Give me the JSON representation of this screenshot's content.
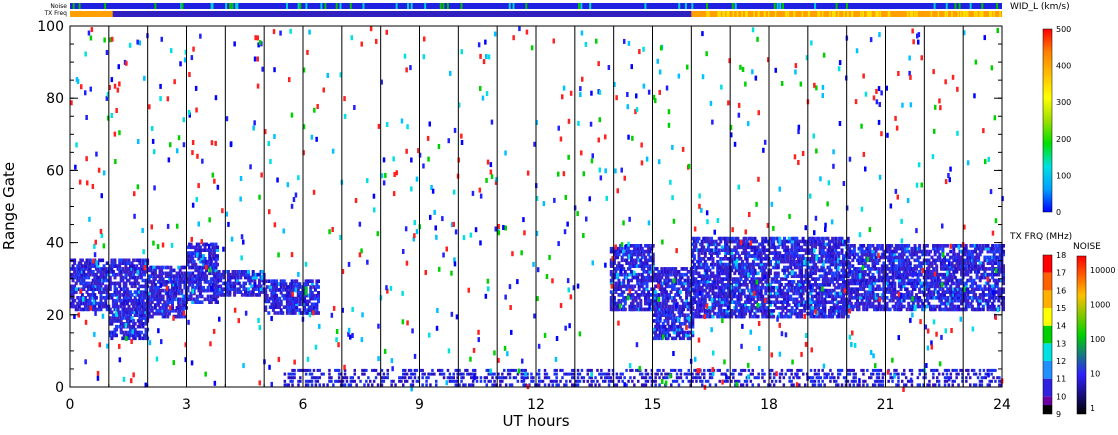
{
  "chart_data": {
    "type": "heatmap",
    "title": "",
    "xlabel": "UT hours",
    "ylabel": "Range Gate",
    "xlim": [
      0,
      24
    ],
    "ylim": [
      0,
      100
    ],
    "x_tick_labels": [
      "0",
      "3",
      "6",
      "9",
      "12",
      "15",
      "18",
      "21",
      "24"
    ],
    "y_tick_labels": [
      "0",
      "20",
      "40",
      "60",
      "80",
      "100"
    ],
    "grid": "vertical lines at scan boundaries",
    "scan_boundaries_ut": [
      1.0,
      2.0,
      3.0,
      4.0,
      5.0,
      6.0,
      7.0,
      8.0,
      9.0,
      10.0,
      11.0,
      12.0,
      13.0,
      14.0,
      15.0,
      16.0,
      17.0,
      18.0,
      19.0,
      20.0,
      21.0,
      22.0,
      23.0,
      24.0
    ],
    "top_strips": {
      "noise_label": "Noise",
      "txfreq_label": "TX Freq"
    },
    "colorbar_width": {
      "title": "WID_L (km/s)",
      "range": [
        0,
        500
      ],
      "tick_labels": [
        "0",
        "100",
        "200",
        "300",
        "400",
        "500"
      ],
      "colors": [
        "#0000ff",
        "#00a0ff",
        "#00e0e0",
        "#00e000",
        "#a0e000",
        "#ffff00",
        "#ffc000",
        "#ff8000",
        "#ff0000"
      ]
    },
    "colorbar_txfreq": {
      "title": "TX FRQ (MHz)",
      "tick_labels": [
        "9",
        "10",
        "11",
        "12",
        "13",
        "14",
        "15",
        "16",
        "17",
        "18"
      ],
      "colors": [
        "#000000",
        "#6a00a0",
        "#3020e0",
        "#2090ff",
        "#00e0e0",
        "#00d000",
        "#ffff00",
        "#ffb000",
        "#ff6000",
        "#ff0000"
      ]
    },
    "colorbar_noise": {
      "title": "NOISE",
      "tick_labels": [
        "1",
        "10",
        "100",
        "1000",
        "10000"
      ],
      "colors": [
        "#000000",
        "#3020ff",
        "#00d000",
        "#ffc000",
        "#ff0000"
      ]
    },
    "echo_bands": [
      {
        "t_start": 0.0,
        "t_end": 1.0,
        "gate_low": 22,
        "gate_high": 36
      },
      {
        "t_start": 1.0,
        "t_end": 2.0,
        "gate_low": 14,
        "gate_high": 36
      },
      {
        "t_start": 2.0,
        "t_end": 3.0,
        "gate_low": 20,
        "gate_high": 34
      },
      {
        "t_start": 3.0,
        "t_end": 3.8,
        "gate_low": 24,
        "gate_high": 40
      },
      {
        "t_start": 3.8,
        "t_end": 5.0,
        "gate_low": 26,
        "gate_high": 33
      },
      {
        "t_start": 5.0,
        "t_end": 6.4,
        "gate_low": 21,
        "gate_high": 30
      },
      {
        "t_start": 13.9,
        "t_end": 15.0,
        "gate_low": 22,
        "gate_high": 40
      },
      {
        "t_start": 15.0,
        "t_end": 16.0,
        "gate_low": 14,
        "gate_high": 34
      },
      {
        "t_start": 16.0,
        "t_end": 20.0,
        "gate_low": 20,
        "gate_high": 42
      },
      {
        "t_start": 20.0,
        "t_end": 24.0,
        "gate_low": 22,
        "gate_high": 40
      }
    ],
    "ground_scatter": {
      "t_start": 5.5,
      "t_end": 24.0,
      "gate_low": 0,
      "gate_high": 5
    }
  }
}
